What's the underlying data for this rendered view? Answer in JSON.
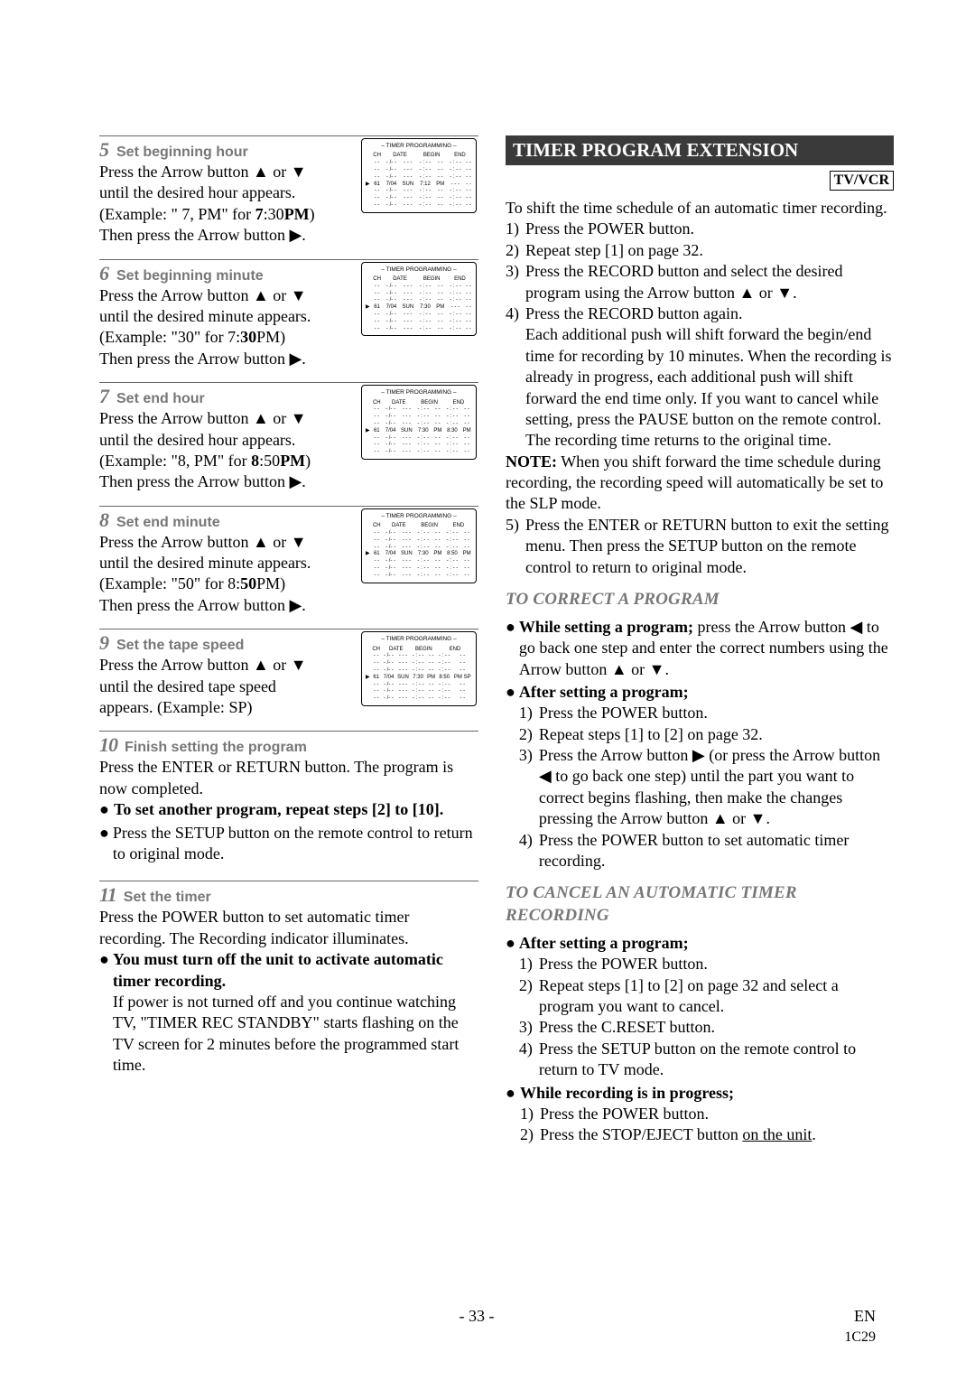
{
  "page": {
    "number": "- 33 -",
    "lang": "EN",
    "code": "1C29"
  },
  "steps": [
    {
      "num": "5",
      "title": "Set beginning hour",
      "lines": [
        "Press the Arrow button ▲ or ▼",
        "until the desired hour appears.",
        "(Example: \" 7, PM\" for 7:30PM)",
        "Then press the Arrow button ▶."
      ],
      "screen": {
        "ch": "61",
        "date": "7/04",
        "day": "SUN",
        "begin": "  7:12",
        "ampm1": "PM",
        "end": "- - -",
        "ampm2": "- -"
      }
    },
    {
      "num": "6",
      "title": "Set beginning minute",
      "lines": [
        "Press the Arrow button ▲ or ▼",
        "until the desired minute appears.",
        "(Example: \"30\" for 7:30PM)",
        "Then press the Arrow button ▶."
      ],
      "screen": {
        "ch": "61",
        "date": "7/04",
        "day": "SUN",
        "begin": "  7:30",
        "ampm1": "PM",
        "end": "- - -",
        "ampm2": "- -"
      }
    },
    {
      "num": "7",
      "title": "Set end hour",
      "lines": [
        "Press the Arrow button ▲ or ▼",
        "until the desired hour appears.",
        "(Example: \"8, PM\" for 8:50PM)",
        "Then press the Arrow button ▶."
      ],
      "screen": {
        "ch": "61",
        "date": "7/04",
        "day": "SUN",
        "begin": "  7:30",
        "ampm1": "PM",
        "end": "8:30",
        "ampm2": "PM"
      }
    },
    {
      "num": "8",
      "title": "Set end minute",
      "lines": [
        "Press the Arrow button ▲ or ▼",
        "until the desired minute appears.",
        "(Example: \"50\" for 8:50PM)",
        "Then press the Arrow button ▶."
      ],
      "screen": {
        "ch": "61",
        "date": "7/04",
        "day": "SUN",
        "begin": "  7:30",
        "ampm1": "PM",
        "end": "8:50",
        "ampm2": "PM"
      }
    },
    {
      "num": "9",
      "title": "Set the tape speed",
      "lines": [
        "Press the Arrow button ▲ or ▼",
        "until the desired tape speed",
        "appears. (Example: SP)"
      ],
      "screen": {
        "ch": "61",
        "date": "7/04",
        "day": "SUN",
        "begin": "  7:30",
        "ampm1": "PM",
        "end": "8:50",
        "ampm2": "PM",
        "sp": "SP"
      }
    }
  ],
  "step10": {
    "num": "10",
    "title": "Finish setting the program",
    "body": "Press the ENTER or RETURN button. The program is now completed.",
    "bullets": [
      {
        "bold": true,
        "text": "To set another program, repeat steps [2] to [10]."
      },
      {
        "bold": false,
        "text": "Press the SETUP button on the remote control to return to original mode."
      }
    ]
  },
  "step11": {
    "num": "11",
    "title": "Set the timer",
    "body": "Press the POWER button to set automatic timer recording. The Recording indicator illuminates.",
    "bullet_bold": "You must turn off the unit to activate automatic timer recording.",
    "bullet_body": "If power is not turned off and you continue watching TV, \"TIMER REC STANDBY\" starts flashing on the TV screen for 2 minutes before the programmed start time."
  },
  "mini_header": {
    "title": "– TIMER PROGRAMMING –",
    "cols": [
      "CH",
      "DATE",
      "BEGIN",
      "END"
    ],
    "dash_cell": "- -",
    "dash_date": "- /- -",
    "dash_day": "- - -",
    "dash_time": "- : - -"
  },
  "right": {
    "flag": "TIMER PROGRAM EXTENSION",
    "tvvcr": "TV/VCR",
    "intro": "To shift the time schedule of an automatic timer recording.",
    "items": [
      {
        "n": "1)",
        "t": "Press the POWER button."
      },
      {
        "n": "2)",
        "t": "Repeat step [1] on page 32."
      },
      {
        "n": "3)",
        "t": "Press the RECORD button and select the desired program using the Arrow button ▲ or ▼."
      },
      {
        "n": "4)",
        "t": "Press the RECORD button again."
      }
    ],
    "item4_extra": "Each additional push will shift forward the begin/end time for recording by 10 minutes. When the recording is already in progress, each additional push will shift forward the end time only. If you want to cancel while setting, press the PAUSE button on the remote control. The recording time returns to the original time.",
    "note_label": "NOTE:",
    "note": " When you shift forward the time schedule during recording, the recording speed will automatically be set to the SLP mode.",
    "item5": {
      "n": "5)",
      "t": "Press the ENTER or RETURN button to exit the setting menu. Then press the SETUP button on the remote control to return to original mode."
    },
    "sub1": "TO CORRECT A PROGRAM",
    "correct": {
      "while_label": "While setting a program;",
      "while_text": " press the Arrow button ◀ to go back one step and enter the correct numbers using the Arrow button ▲ or ▼.",
      "after_label": "After setting a program;",
      "after_items": [
        {
          "n": "1)",
          "t": "Press the POWER button."
        },
        {
          "n": "2)",
          "t": "Repeat steps [1] to [2] on page 32."
        },
        {
          "n": "3)",
          "t": "Press the Arrow button ▶ (or press the Arrow button ◀ to go back one step) until the part you want to correct begins flashing, then make the changes pressing the Arrow button ▲ or ▼."
        },
        {
          "n": "4)",
          "t": "Press the POWER button to set automatic timer recording."
        }
      ]
    },
    "sub2": "TO CANCEL AN AUTOMATIC TIMER RECORDING",
    "cancel": {
      "after_label": "After setting a program;",
      "after_items": [
        {
          "n": "1)",
          "t": "Press the POWER button."
        },
        {
          "n": "2)",
          "t": "Repeat steps [1] to [2] on page 32 and select a program you want to cancel."
        },
        {
          "n": "3)",
          "t": "Press the C.RESET button."
        },
        {
          "n": "4)",
          "t": "Press the SETUP button on the remote control to return to TV mode."
        }
      ],
      "while_label": "While recording is in progress;",
      "while_items": [
        {
          "n": "1)",
          "t": "Press the POWER button."
        },
        {
          "n": "2)",
          "t_pre": "Press the STOP/EJECT button ",
          "t_u": "on the unit",
          "t_post": "."
        }
      ]
    }
  }
}
